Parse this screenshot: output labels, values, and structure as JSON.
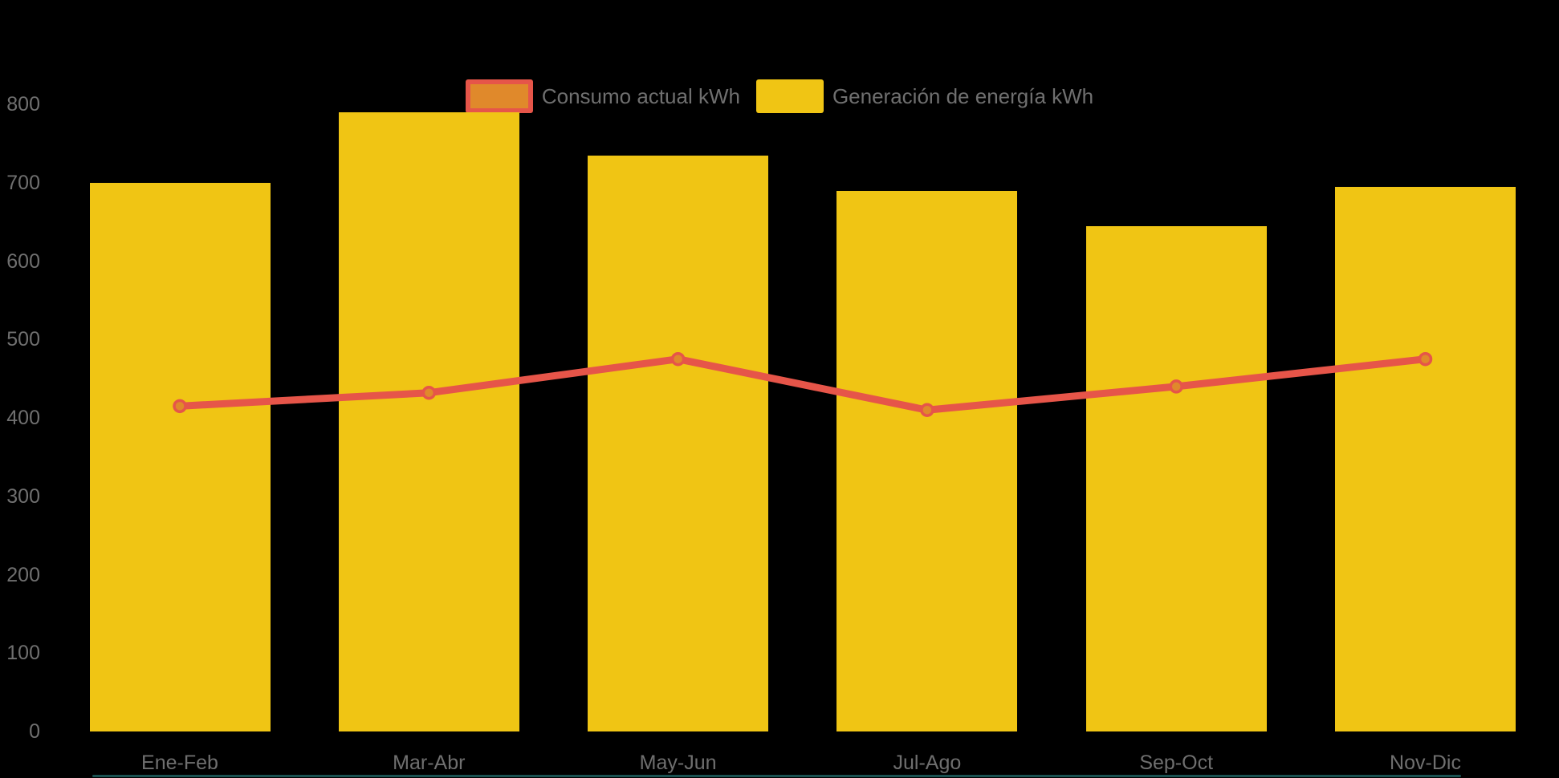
{
  "chart_data": {
    "type": "bar",
    "subtype": "bar-line-combo",
    "categories": [
      "Ene-Feb",
      "Mar-Abr",
      "May-Jun",
      "Jul-Ago",
      "Sep-Oct",
      "Nov-Dic"
    ],
    "series": [
      {
        "name": "Consumo actual kWh",
        "type": "line",
        "color": "#E65549",
        "point_fill": "#E0892B",
        "values": [
          415,
          432,
          475,
          410,
          440,
          475
        ]
      },
      {
        "name": "Generación de energía kWh",
        "type": "bar",
        "color": "#F0C514",
        "values": [
          700,
          790,
          735,
          690,
          645,
          695
        ]
      }
    ],
    "title": "",
    "xlabel": "",
    "ylabel": "",
    "ylim": [
      0,
      800
    ],
    "yticks": [
      0,
      100,
      200,
      300,
      400,
      500,
      600,
      700,
      800
    ],
    "grid": false,
    "legend_position": "top-center",
    "colors": {
      "background": "#000000",
      "axis_text": "#6F6F6F",
      "bottom_accent": "#1E5F5F"
    }
  }
}
